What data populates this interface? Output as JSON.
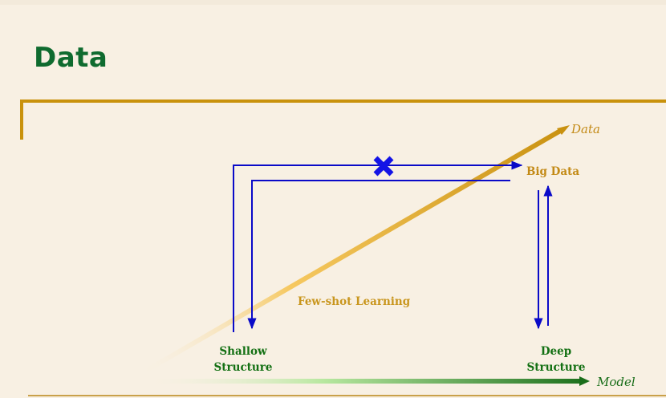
{
  "title": "Data",
  "diagram": {
    "axes": {
      "data_label": "Data",
      "model_label": "Model"
    },
    "nodes": {
      "big_data": "Big Data",
      "shallow_structure": [
        "Shallow",
        "Structure"
      ],
      "deep_structure": [
        "Deep",
        "Structure"
      ],
      "few_shot": "Few-shot Learning"
    },
    "colors": {
      "title": "#0f6b2f",
      "frame": "#c9920c",
      "data_axis": "#d4a020",
      "model_axis": "#1a6e1a",
      "flow_arrows": "#0a0ac8",
      "blocked_mark": "#1414e6",
      "data_labels": "#c38a16",
      "structure_labels": "#137013"
    }
  }
}
